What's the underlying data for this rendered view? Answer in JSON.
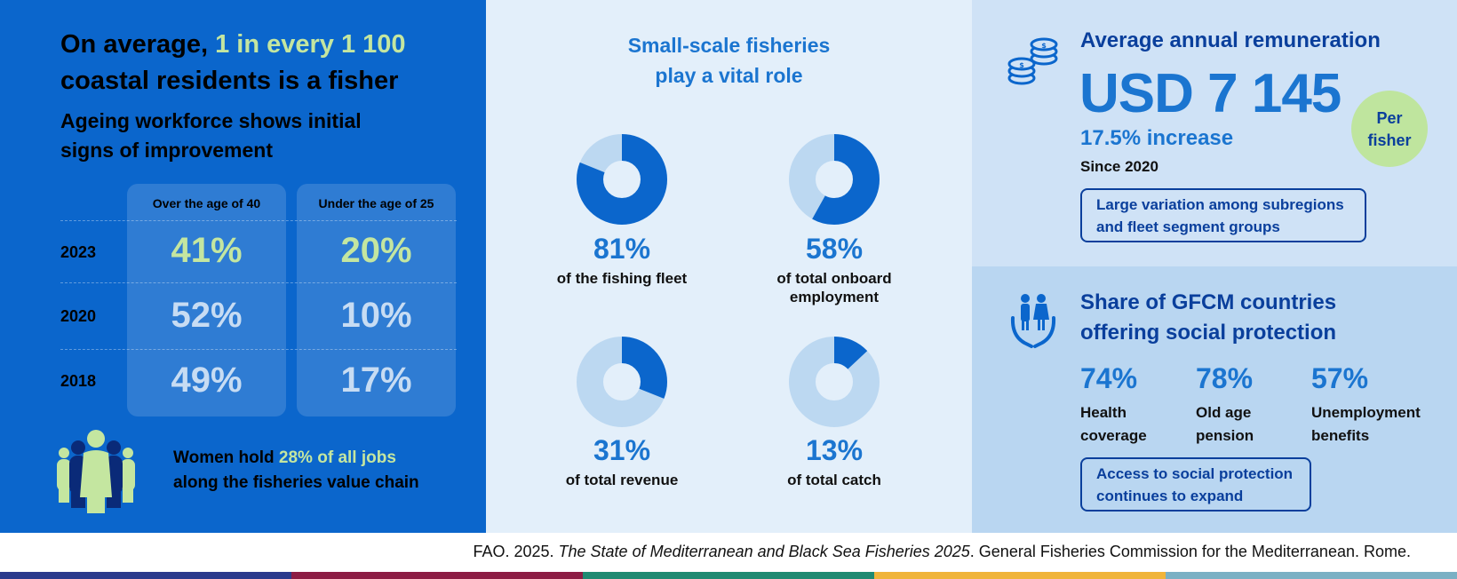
{
  "left": {
    "headline_part1": "On average, ",
    "headline_highlight": "1 in every 1 100",
    "headline_part2": "coastal residents is a fisher",
    "subhead": "Ageing workforce shows initial signs of improvement",
    "columns": [
      "Over the age of 40",
      "Under the age of 25"
    ],
    "rows": [
      {
        "year": "2023",
        "over40": "41%",
        "under25": "20%"
      },
      {
        "year": "2020",
        "over40": "52%",
        "under25": "10%"
      },
      {
        "year": "2018",
        "over40": "49%",
        "under25": "17%"
      }
    ],
    "women_prefix": "Women hold ",
    "women_highlight": "28% of all jobs",
    "women_suffix": "along the fisheries value chain",
    "icon": "women-group-icon"
  },
  "middle": {
    "title_line1": "Small-scale fisheries",
    "title_line2": "play a vital role",
    "donuts": [
      {
        "value": 81,
        "pct": "81%",
        "label_line1": "of the fishing fleet",
        "label_line2": ""
      },
      {
        "value": 58,
        "pct": "58%",
        "label_line1": "of total onboard",
        "label_line2": "employment"
      },
      {
        "value": 31,
        "pct": "31%",
        "label_line1": "of total revenue",
        "label_line2": ""
      },
      {
        "value": 13,
        "pct": "13%",
        "label_line1": "of total catch",
        "label_line2": ""
      }
    ]
  },
  "remuneration": {
    "title": "Average annual remuneration",
    "value": "USD 7 145",
    "increase": "17.5% increase",
    "since": "Since 2020",
    "badge_line1": "Per",
    "badge_line2": "fisher",
    "note_line1": "Large variation among subregions",
    "note_line2": "and fleet segment groups",
    "icon": "coins-icon"
  },
  "social_protection": {
    "title_line1": "Share of GFCM countries",
    "title_line2": "offering social protection",
    "items": [
      {
        "pct": "74%",
        "label_line1": "Health",
        "label_line2": "coverage"
      },
      {
        "pct": "78%",
        "label_line1": "Old age",
        "label_line2": "pension"
      },
      {
        "pct": "57%",
        "label_line1": "Unemployment",
        "label_line2": "benefits"
      }
    ],
    "note_line1": "Access to social protection",
    "note_line2": "continues to expand",
    "icon": "people-in-hands-icon"
  },
  "citation": {
    "prefix": "FAO. 2025. ",
    "title": "The State of Mediterranean and Black Sea Fisheries 2025",
    "suffix": ". General Fisheries Commission for the Mediterranean. Rome."
  },
  "colors": {
    "primary_blue": "#0b66cc",
    "accent_blue": "#1b75d0",
    "dark_blue": "#0a3f9c",
    "highlight_green": "#c4e6a0",
    "donut_fill": "#0b66cc",
    "donut_track": "#bcd8f1",
    "stripes": [
      "#2a3a8c",
      "#8c1c44",
      "#1f8a72",
      "#f0b43a",
      "#7ab0c4"
    ]
  }
}
